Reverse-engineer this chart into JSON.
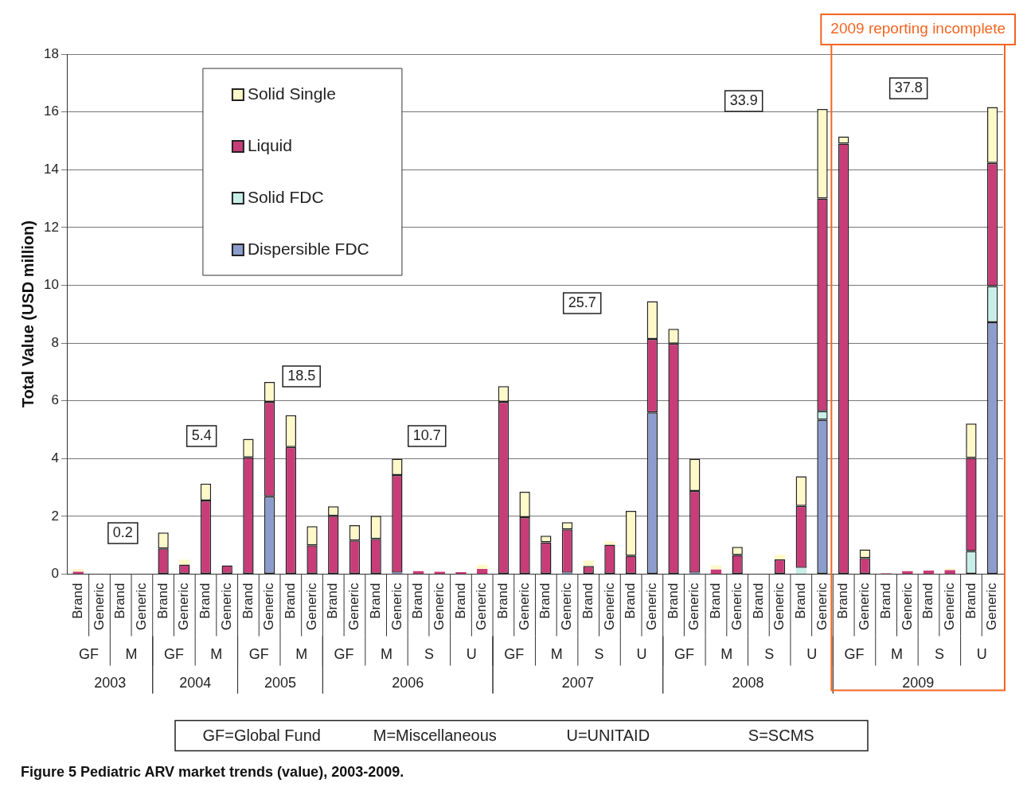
{
  "chart_data": {
    "type": "bar",
    "stacked": true,
    "title": "Figure 5 Pediatric ARV market trends (value), 2003-2009.",
    "ylabel": "Total Value (USD million)",
    "categories": [
      "Brand",
      "Generic",
      "Brand",
      "Generic",
      "Brand",
      "Generic",
      "Brand",
      "Generic",
      "Brand",
      "Generic",
      "Brand",
      "Generic",
      "Brand",
      "Generic",
      "Brand",
      "Generic",
      "Brand",
      "Generic",
      "Brand",
      "Generic",
      "Brand",
      "Generic",
      "Brand",
      "Generic",
      "Brand",
      "Generic",
      "Brand",
      "Generic",
      "Brand",
      "Generic",
      "Brand",
      "Generic",
      "Brand",
      "Generic",
      "Brand",
      "Generic",
      "Brand",
      "Generic",
      "Brand",
      "Generic",
      "Brand",
      "Generic",
      "Brand",
      "Generic"
    ],
    "ylim": [
      0,
      18
    ],
    "yticks": [
      0,
      2,
      4,
      6,
      8,
      10,
      12,
      14,
      16,
      18
    ],
    "grid": "y",
    "legend": "top left",
    "series": [
      {
        "name": "Dispersible FDC",
        "color": "#8c9ccc",
        "values": [
          null,
          null,
          null,
          null,
          null,
          null,
          null,
          null,
          null,
          2.69,
          null,
          null,
          null,
          null,
          null,
          0.05,
          null,
          null,
          null,
          null,
          null,
          null,
          null,
          0.05,
          null,
          null,
          null,
          5.6,
          null,
          0.05,
          null,
          null,
          null,
          null,
          null,
          5.34,
          null,
          null,
          null,
          null,
          null,
          null,
          null,
          8.72
        ]
      },
      {
        "name": "Solid FDC",
        "color": "#c8eee8",
        "values": [
          null,
          null,
          null,
          null,
          null,
          null,
          null,
          null,
          null,
          null,
          null,
          null,
          null,
          null,
          null,
          null,
          null,
          null,
          null,
          null,
          null,
          null,
          null,
          null,
          null,
          null,
          null,
          null,
          null,
          null,
          null,
          null,
          null,
          null,
          0.21,
          0.3,
          null,
          null,
          null,
          null,
          null,
          null,
          0.8,
          1.25
        ]
      },
      {
        "name": "Liquid",
        "color": "#c83c78",
        "values": [
          0.08,
          null,
          null,
          null,
          0.89,
          0.33,
          2.55,
          0.3,
          4.04,
          3.27,
          4.4,
          1.0,
          2.02,
          1.16,
          1.22,
          3.38,
          0.1,
          0.08,
          0.07,
          0.18,
          5.96,
          1.97,
          1.1,
          1.5,
          0.28,
          1.02,
          0.63,
          2.54,
          7.98,
          2.83,
          0.16,
          0.66,
          null,
          0.51,
          2.15,
          7.36,
          14.9,
          0.56,
          0.03,
          0.1,
          0.12,
          0.14,
          3.22,
          4.26
        ]
      },
      {
        "name": "Solid Single",
        "color": "#fff8c8",
        "values": [
          0.1,
          null,
          null,
          null,
          0.55,
          0.17,
          0.58,
          null,
          0.64,
          0.69,
          1.1,
          0.66,
          0.33,
          0.53,
          0.8,
          0.56,
          null,
          null,
          null,
          0.14,
          0.55,
          0.88,
          0.23,
          0.25,
          0.19,
          0.11,
          1.56,
          1.31,
          0.51,
          1.11,
          0.14,
          0.28,
          null,
          0.16,
          1.03,
          3.1,
          0.25,
          0.29,
          null,
          null,
          null,
          0.05,
          1.19,
          1.94
        ]
      }
    ],
    "annotations": [
      "0.2",
      "5.4",
      "18.5",
      "10.7",
      "25.7",
      "33.9",
      "37.8",
      "GF",
      "M",
      "GF",
      "M",
      "GF",
      "M",
      "GF",
      "M",
      "S",
      "U",
      "GF",
      "M",
      "S",
      "U",
      "GF",
      "M",
      "S",
      "U",
      "GF",
      "M",
      "S",
      "U",
      "2003",
      "2004",
      "2005",
      "2006",
      "2007",
      "2008",
      "2009",
      "2009 reporting incomplete",
      "GF=Global Fund",
      "M=Miscellaneous",
      "U=UNITAID",
      "S=SCMS"
    ]
  }
}
